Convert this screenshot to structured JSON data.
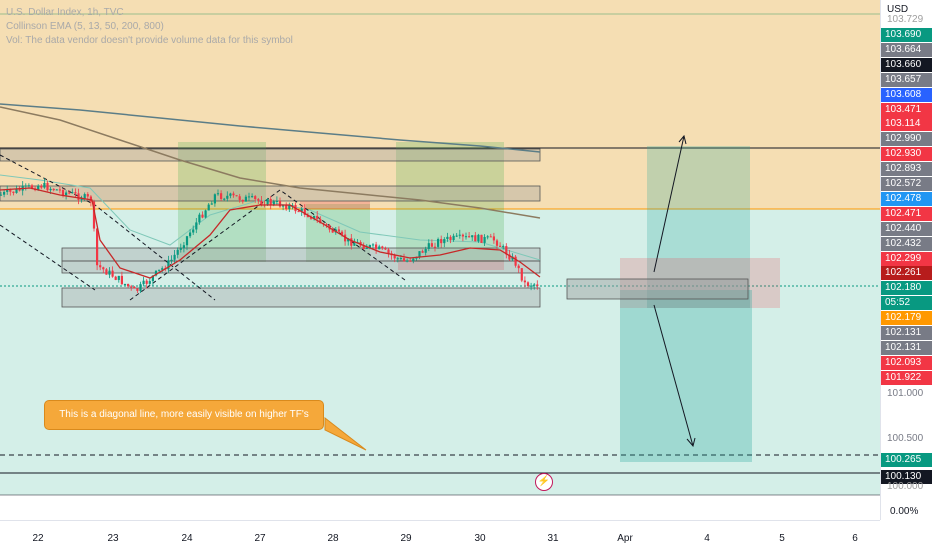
{
  "legend": {
    "symbol": "U.S. Dollar Index, 1h, TVC",
    "indicator": "Collinson EMA (5, 13, 50, 200, 800)",
    "volume_note": "Vol: The data vendor doesn't provide volume data for this symbol"
  },
  "price_axis": {
    "currency": "USD",
    "top_value": "103.729",
    "tags": [
      {
        "text": "103.690",
        "color": "#089981"
      },
      {
        "text": "103.664",
        "color": "#787b86"
      },
      {
        "text": "103.660",
        "color": "#131722"
      },
      {
        "text": "103.657",
        "color": "#787b86"
      },
      {
        "text": "103.608",
        "color": "#2962ff"
      },
      {
        "text": "103.471",
        "color": "#f23645"
      },
      {
        "text": "103.114",
        "color": "#f23645"
      },
      {
        "text": "102.990",
        "color": "#787b86"
      },
      {
        "text": "102.930",
        "color": "#f23645"
      },
      {
        "text": "102.893",
        "color": "#787b86"
      },
      {
        "text": "102.572",
        "color": "#787b86"
      },
      {
        "text": "102.478",
        "color": "#2196f3"
      },
      {
        "text": "102.471",
        "color": "#f23645"
      },
      {
        "text": "102.440",
        "color": "#787b86"
      },
      {
        "text": "102.432",
        "color": "#787b86"
      },
      {
        "text": "102.299",
        "color": "#f23645"
      },
      {
        "text": "102.261",
        "color": "#b71c1c"
      },
      {
        "text": "102.180",
        "color": "#089981"
      },
      {
        "text": "05:52",
        "color": "#089981"
      },
      {
        "text": "102.179",
        "color": "#ff9800"
      },
      {
        "text": "102.131",
        "color": "#787b86"
      },
      {
        "text": "102.131",
        "color": "#787b86"
      },
      {
        "text": "102.093",
        "color": "#f23645"
      },
      {
        "text": "101.922",
        "color": "#f23645"
      }
    ],
    "plain_levels": [
      "101.000",
      "100.500"
    ],
    "bottom_tags": [
      {
        "text": "100.265",
        "color": "#089981"
      },
      {
        "text": "100.130",
        "color": "#131722"
      }
    ],
    "bottom_value": "100.000",
    "percent": "0.00%"
  },
  "time_axis": [
    "22",
    "23",
    "24",
    "27",
    "28",
    "29",
    "30",
    "31",
    "Apr",
    "4",
    "5",
    "6"
  ],
  "annotation": "This is a diagonal line, more easily visible on higher TF's",
  "colors": {
    "supply_zone": "#f5deb3",
    "demand_zone": "#d4efe8",
    "bull_candle": "#089981",
    "bear_candle": "#f23645",
    "ema_long": "#5b7d87",
    "ema_800": "#8c7b60",
    "ema_fast": "#c62828"
  }
}
